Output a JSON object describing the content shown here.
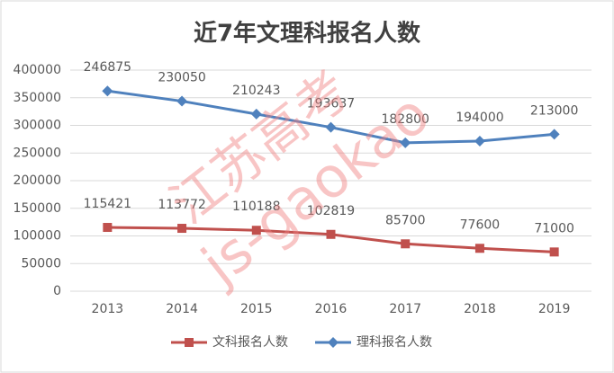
{
  "chart_data": {
    "type": "line",
    "stacked": true,
    "title": "近7年文理科报名人数",
    "categories": [
      "2013",
      "2014",
      "2015",
      "2016",
      "2017",
      "2018",
      "2019"
    ],
    "series": [
      {
        "name": "文科报名人数",
        "color": "#c0504d",
        "marker": "square",
        "values": [
          115421,
          113772,
          110188,
          102819,
          85700,
          77600,
          71000
        ]
      },
      {
        "name": "理科报名人数",
        "color": "#4f81bd",
        "marker": "diamond",
        "values": [
          246875,
          230050,
          210243,
          193637,
          182800,
          194000,
          213000
        ]
      }
    ],
    "ylim": [
      0,
      400000
    ],
    "yticks": [
      0,
      50000,
      100000,
      150000,
      200000,
      250000,
      300000,
      350000,
      400000
    ],
    "grid": true,
    "legend": "bottom",
    "watermark": [
      "江苏高考",
      "js-gaokao"
    ]
  }
}
